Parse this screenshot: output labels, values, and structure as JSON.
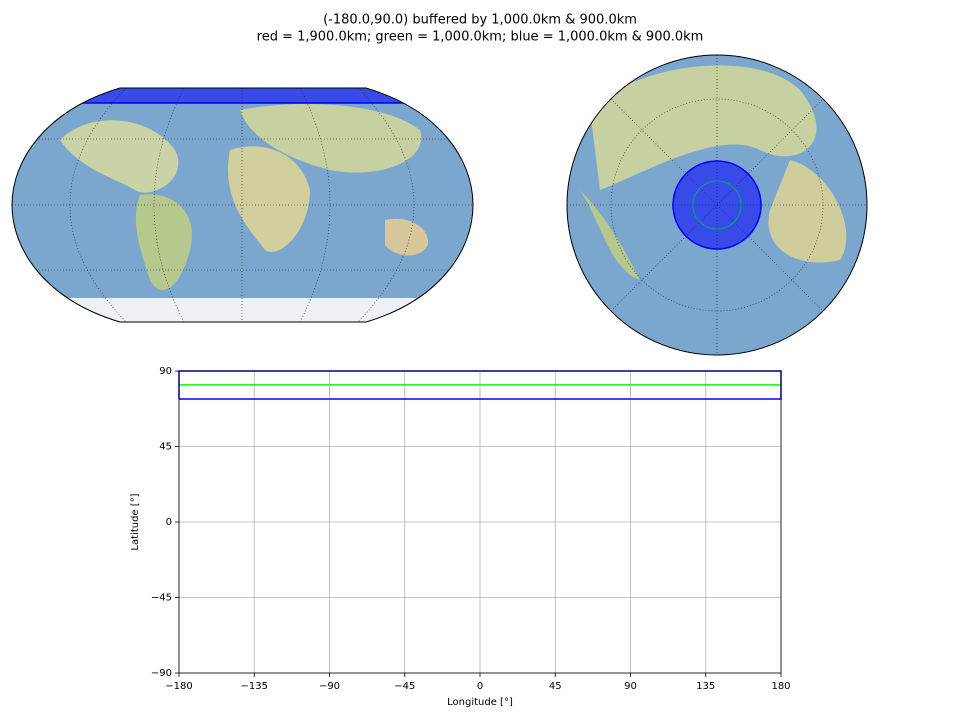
{
  "chart_data": {
    "type": "line",
    "title": "(-180.0,90.0) buffered by 1,000.0km & 900.0km",
    "subtitle": "red = 1,900.0km; green = 1,000.0km; blue = 1,000.0km & 900.0km",
    "x_label": "Longitude [°]",
    "y_label": "Latitude [°]",
    "xlim": [
      -180,
      180
    ],
    "ylim": [
      -90,
      90
    ],
    "xticks": [
      {
        "value": -180,
        "label": "−180"
      },
      {
        "value": -135,
        "label": "−135"
      },
      {
        "value": -90,
        "label": "−90"
      },
      {
        "value": -45,
        "label": "−45"
      },
      0,
      45,
      90,
      135,
      180
    ],
    "yticks": [
      {
        "value": -90,
        "label": "−90"
      },
      {
        "value": -45,
        "label": "−45"
      },
      0,
      45,
      90
    ],
    "grid": true,
    "series": [
      {
        "color": "#00ff00",
        "x": [
          -180,
          180
        ],
        "values": [
          81.7,
          81.7
        ]
      },
      {
        "color": "#0000ff",
        "x": [
          -180,
          180,
          180,
          -180,
          -180
        ],
        "values": [
          73.3,
          73.3,
          90,
          90,
          73.3
        ]
      }
    ]
  }
}
